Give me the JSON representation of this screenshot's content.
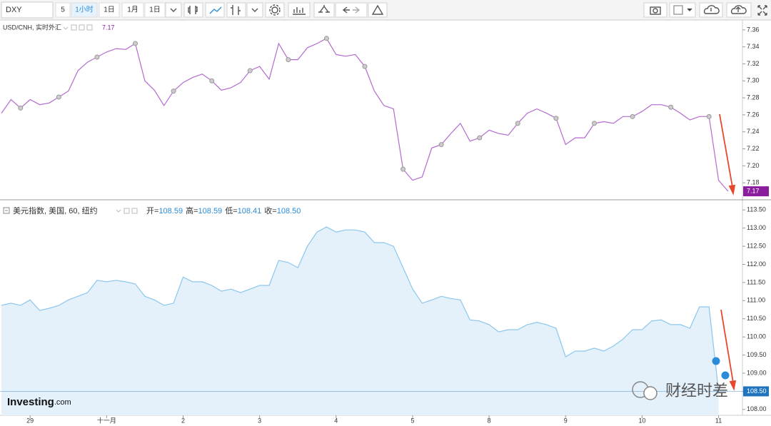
{
  "toolbar": {
    "symbol": "DXY",
    "buttons": [
      "5",
      "1小时",
      "1日",
      "1月",
      "1日"
    ]
  },
  "chart_data": [
    {
      "type": "line",
      "title": "USD/CNH, 实时外汇",
      "legend_value": "7.17",
      "color": "#b46ad0",
      "tag_color": "#8a1c9e",
      "values": [
        7.262,
        7.278,
        7.268,
        7.278,
        7.272,
        7.274,
        7.281,
        7.288,
        7.312,
        7.322,
        7.328,
        7.334,
        7.338,
        7.337,
        7.344,
        7.3,
        7.289,
        7.271,
        7.288,
        7.298,
        7.304,
        7.308,
        7.3,
        7.289,
        7.292,
        7.298,
        7.312,
        7.317,
        7.302,
        7.344,
        7.325,
        7.325,
        7.339,
        7.344,
        7.35,
        7.331,
        7.329,
        7.331,
        7.317,
        7.288,
        7.271,
        7.267,
        7.196,
        7.183,
        7.187,
        7.221,
        7.225,
        7.238,
        7.25,
        7.229,
        7.233,
        7.242,
        7.238,
        7.236,
        7.25,
        7.262,
        7.267,
        7.262,
        7.256,
        7.225,
        7.233,
        7.233,
        7.25,
        7.252,
        7.25,
        7.258,
        7.258,
        7.264,
        7.272,
        7.272,
        7.269,
        7.262,
        7.254,
        7.258,
        7.258,
        7.183,
        7.17
      ],
      "current_value": 7.17,
      "ylim": [
        7.16,
        7.37
      ],
      "yticks": [
        7.18,
        {
          "value": 7.2,
          "label": "7.20"
        },
        7.22,
        7.24,
        7.26,
        7.28,
        {
          "value": 7.3,
          "label": "7.30"
        },
        7.32,
        7.34,
        7.36
      ]
    },
    {
      "type": "area",
      "title": "美元指数, 美国, 60, 纽约",
      "color": "#8cc6ec",
      "fill": "#e4f1fb",
      "tag_color": "#1f74c0",
      "ohlc": [
        {
          "label": "开=",
          "value": "108.59"
        },
        {
          "label": "高=",
          "value": "108.59"
        },
        {
          "label": "低=",
          "value": "108.41"
        },
        {
          "label": "收=",
          "value": "108.50"
        }
      ],
      "categories": [
        null,
        null,
        null,
        "29",
        null,
        null,
        null,
        null,
        null,
        null,
        null,
        "十一月",
        null,
        null,
        null,
        null,
        null,
        null,
        null,
        "2",
        null,
        null,
        null,
        null,
        null,
        null,
        null,
        "3",
        null,
        null,
        null,
        null,
        null,
        null,
        null,
        "4",
        null,
        null,
        null,
        null,
        null,
        null,
        null,
        "5",
        null,
        null,
        null,
        null,
        null,
        null,
        null,
        "8",
        null,
        null,
        null,
        null,
        null,
        null,
        null,
        "9",
        null,
        null,
        null,
        null,
        null,
        null,
        null,
        "10",
        null,
        null,
        null,
        null,
        null,
        null,
        null,
        "11",
        null
      ],
      "values": [
        110.87,
        110.93,
        110.87,
        111.02,
        110.73,
        110.79,
        110.87,
        111.02,
        111.12,
        111.22,
        111.56,
        111.52,
        111.56,
        111.52,
        111.46,
        111.12,
        111.02,
        110.87,
        110.93,
        111.65,
        111.52,
        111.52,
        111.42,
        111.26,
        111.32,
        111.22,
        111.32,
        111.42,
        111.42,
        112.11,
        112.05,
        111.91,
        112.5,
        112.89,
        113.03,
        112.89,
        112.95,
        112.95,
        112.89,
        112.6,
        112.6,
        112.5,
        111.91,
        111.32,
        110.93,
        111.02,
        111.12,
        111.06,
        111.02,
        110.47,
        110.44,
        110.34,
        110.14,
        110.2,
        110.2,
        110.34,
        110.4,
        110.34,
        110.24,
        109.45,
        109.61,
        109.61,
        109.69,
        109.61,
        109.75,
        109.94,
        110.2,
        110.2,
        110.44,
        110.47,
        110.34,
        110.34,
        110.24,
        110.83,
        110.83,
        108.5,
        null
      ],
      "current_value": 108.5,
      "current_label": "108.50",
      "ylim": [
        107.84,
        113.74
      ],
      "yticks": [
        {
          "value": 108,
          "label": "108.00"
        },
        {
          "value": 108.5,
          "label": "108.50"
        },
        {
          "value": 109,
          "label": "109.00"
        },
        {
          "value": 109.5,
          "label": "109.50"
        },
        {
          "value": 110,
          "label": "110.00"
        },
        {
          "value": 110.5,
          "label": "110.50"
        },
        {
          "value": 111,
          "label": "111.00"
        },
        {
          "value": 111.5,
          "label": "111.50"
        },
        {
          "value": 112,
          "label": "112.00"
        },
        {
          "value": 112.5,
          "label": "112.50"
        },
        {
          "value": 113,
          "label": "113.00"
        },
        {
          "value": 113.5,
          "label": "113.50"
        }
      ]
    }
  ],
  "branding": {
    "logo": "Investing",
    "logo_suffix": ".com",
    "watermark": "财经时差"
  }
}
